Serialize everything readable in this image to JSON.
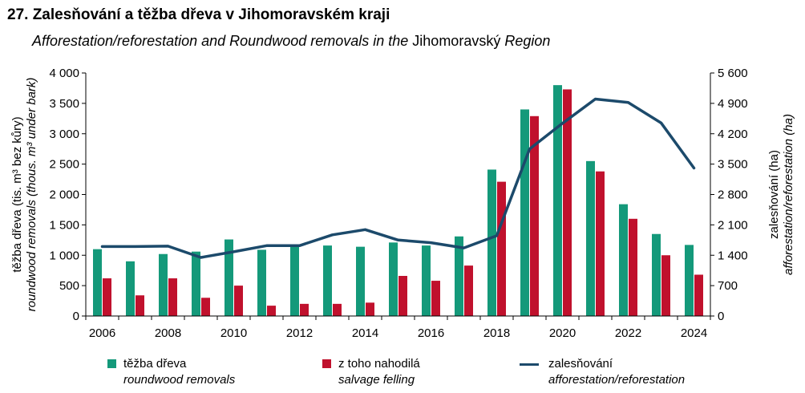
{
  "title": "27. Zalesňování a těžba dřeva v Jihomoravském kraji",
  "subtitle": {
    "part1": "Afforestation/reforestation and Roundwood removals in the",
    "region": "Jihomoravský",
    "part2": "Region"
  },
  "chart_data": {
    "type": "bar+line",
    "years": [
      2006,
      2007,
      2008,
      2009,
      2010,
      2011,
      2012,
      2013,
      2014,
      2015,
      2016,
      2017,
      2018,
      2019,
      2020,
      2021,
      2022,
      2023,
      2024
    ],
    "x_tick_labels": [
      "2006",
      "2008",
      "2010",
      "2012",
      "2014",
      "2016",
      "2018",
      "2020",
      "2022",
      "2024"
    ],
    "left_axis": {
      "label_cz": "těžba dřeva (tis. m³ bez kůry)",
      "label_en": "roundwood removals (thous. m³ under bark)",
      "min": 0,
      "max": 4000,
      "step": 500,
      "tick_labels": [
        "0",
        "500",
        "1 000",
        "1 500",
        "2 000",
        "2 500",
        "3 000",
        "3 500",
        "4 000"
      ]
    },
    "right_axis": {
      "label_cz": "zalesňování  (ha)",
      "label_en": "afforestation/reforestation (ha)",
      "min": 0,
      "max": 5600,
      "step": 700,
      "tick_labels": [
        "0",
        "700",
        "1 400",
        "2 100",
        "2 800",
        "3 500",
        "4 200",
        "4 900",
        "5 600"
      ]
    },
    "series": [
      {
        "name_cz": "těžba dřeva",
        "name_en": "roundwood removals",
        "kind": "bar",
        "axis": "left",
        "color": "#14997a",
        "values": [
          1100,
          900,
          1020,
          1060,
          1260,
          1090,
          1170,
          1160,
          1140,
          1210,
          1160,
          1310,
          2410,
          3400,
          3800,
          2550,
          1840,
          1350,
          1170
        ]
      },
      {
        "name_cz": "z toho nahodilá",
        "name_en": "salvage felling",
        "kind": "bar",
        "axis": "left",
        "color": "#c0112d",
        "values": [
          620,
          340,
          620,
          300,
          500,
          170,
          200,
          200,
          220,
          660,
          580,
          830,
          2210,
          3290,
          3730,
          2380,
          1600,
          1000,
          680
        ]
      },
      {
        "name_cz": "zalesňování",
        "name_en": "afforestation/reforestation",
        "kind": "line",
        "axis": "right",
        "color": "#1c4a6b",
        "values": [
          1600,
          1600,
          1610,
          1350,
          1480,
          1620,
          1620,
          1870,
          1990,
          1750,
          1690,
          1570,
          1850,
          3850,
          4440,
          5000,
          4920,
          4450,
          3410
        ]
      }
    ]
  }
}
